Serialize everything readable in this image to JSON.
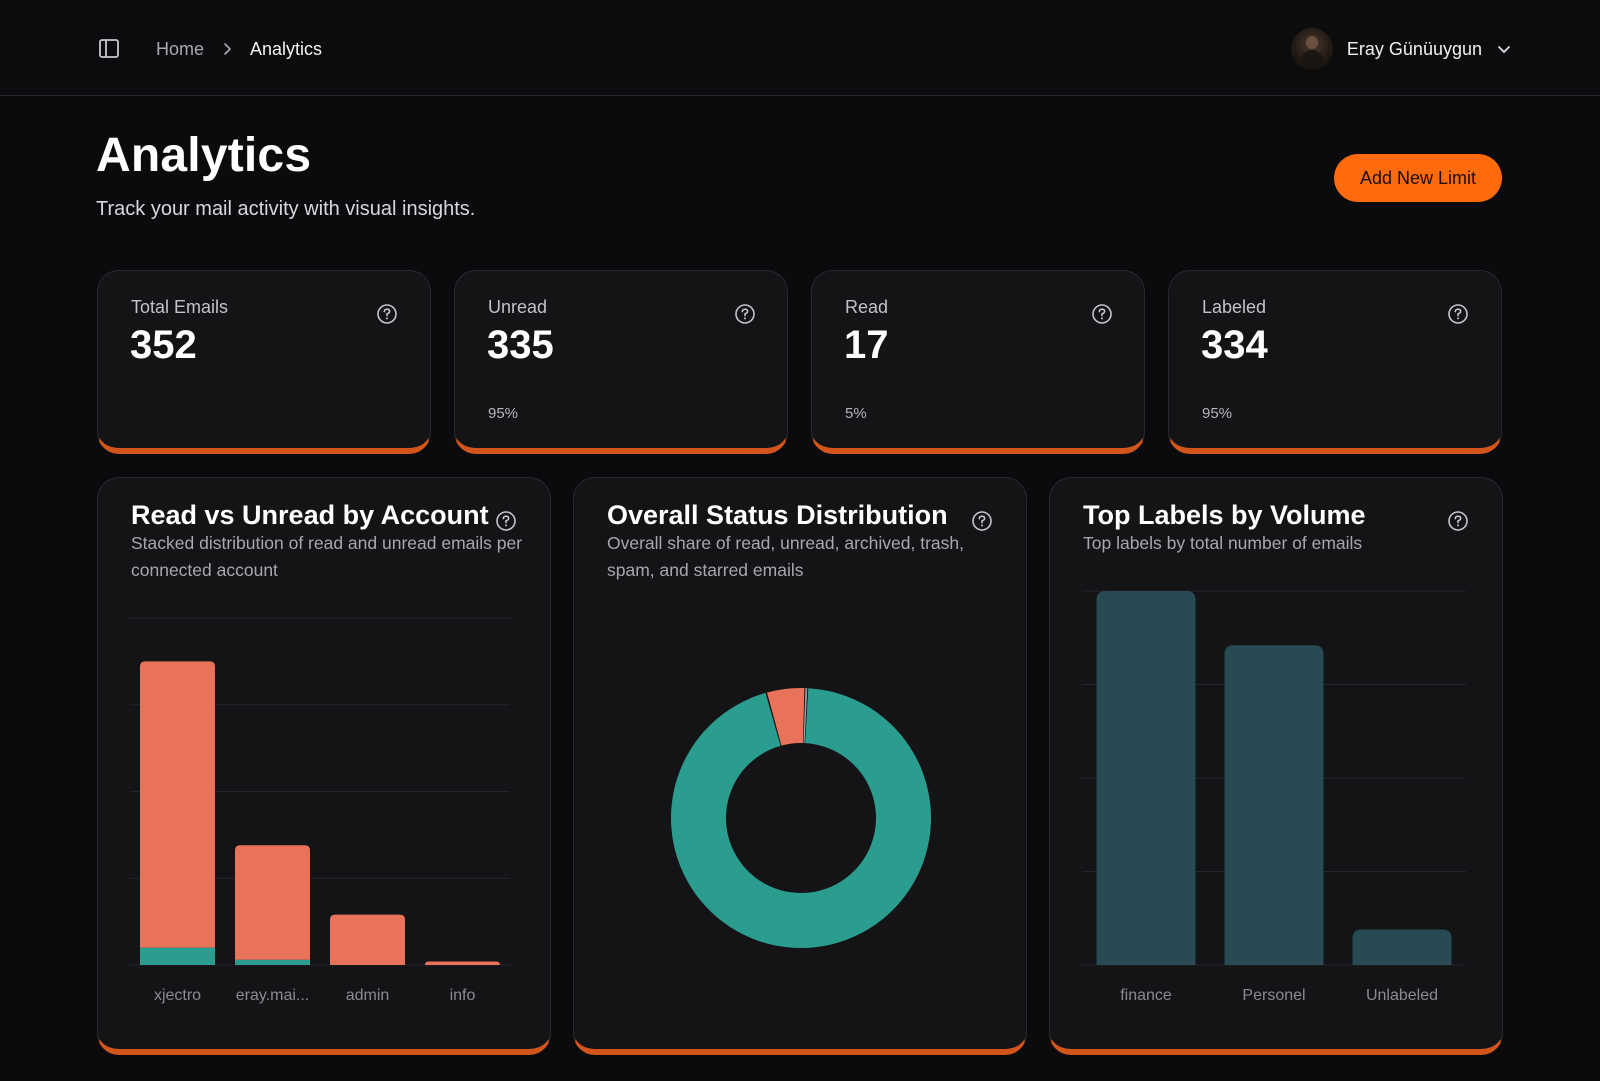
{
  "header": {
    "breadcrumb": {
      "home": "Home",
      "current": "Analytics"
    },
    "user": {
      "name": "Eray Günüuygun"
    }
  },
  "page": {
    "title": "Analytics",
    "subtitle": "Track your mail activity with visual insights.",
    "add_button": "Add New Limit"
  },
  "stats": [
    {
      "label": "Total Emails",
      "value": "352",
      "pct": ""
    },
    {
      "label": "Unread",
      "value": "335",
      "pct": "95%"
    },
    {
      "label": "Read",
      "value": "17",
      "pct": "5%"
    },
    {
      "label": "Labeled",
      "value": "334",
      "pct": "95%"
    }
  ],
  "colors": {
    "accent": "#ff6a0d",
    "card_border_bottom": "#d2561b",
    "unread": "#e8725a",
    "read": "#2a9d8f",
    "labels_bar": "#284a52"
  },
  "cards": {
    "read_unread": {
      "title": "Read vs Unread by Account",
      "description": "Stacked distribution of read and unread emails per connected account"
    },
    "status": {
      "title": "Overall Status Distribution",
      "description": "Overall share of read, unread, archived, trash, spam, and starred emails"
    },
    "labels": {
      "title": "Top Labels by Volume",
      "description": "Top labels by total number of emails"
    }
  },
  "chart_data": [
    {
      "type": "bar",
      "stacked": true,
      "categories": [
        "xjectro",
        "eray.mai...",
        "admin",
        "info"
      ],
      "series": [
        {
          "name": "",
          "values": [
            10,
            3,
            0,
            0
          ],
          "color": "#2a9d8f"
        },
        {
          "name": "",
          "values": [
            165,
            66,
            29,
            2
          ],
          "color": "#e8725a"
        }
      ],
      "ylim": [
        0,
        200
      ],
      "grid": true
    },
    {
      "type": "pie",
      "donut": true,
      "slices": [
        {
          "value": 335,
          "color": "#2a9d8f"
        },
        {
          "value": 17,
          "color": "#e8725a"
        },
        {
          "value": 1,
          "color": "#9aa0a6"
        }
      ]
    },
    {
      "type": "bar",
      "categories": [
        "finance",
        "Personel",
        "Unlabeled"
      ],
      "values": [
        200,
        171,
        19
      ],
      "ylim": [
        0,
        200
      ],
      "grid": true,
      "color": "#284a52"
    }
  ]
}
